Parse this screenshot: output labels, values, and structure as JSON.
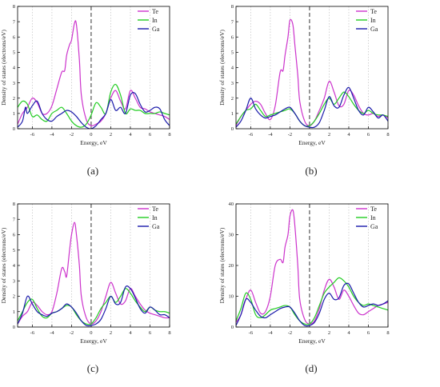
{
  "colors": {
    "Te": "#cc33cc",
    "In": "#22cc22",
    "Ga": "#1a1aaa",
    "zero_line": "#333333",
    "grid": "#c8c8c8"
  },
  "chart_data": [
    {
      "type": "line",
      "panel_label": "(a)",
      "xlabel": "Energy, eV",
      "ylabel": "Density of states (electrons/eV)",
      "xlim": [
        -7.5,
        8
      ],
      "ylim": [
        0,
        8
      ],
      "xticks": [
        -6,
        -4,
        -2,
        0,
        2,
        4,
        6,
        8
      ],
      "yticks": [
        0,
        1,
        2,
        3,
        4,
        5,
        6,
        7,
        8
      ],
      "grid": "vertical",
      "legend": "top-right",
      "zero_line": 0,
      "series": [
        {
          "name": "Te",
          "x": [
            -7.5,
            -7,
            -6.5,
            -6,
            -5.5,
            -5,
            -4.5,
            -4,
            -3.5,
            -3,
            -2.7,
            -2.5,
            -2.2,
            -2,
            -1.7,
            -1.5,
            -1.2,
            -1,
            -0.5,
            0,
            0.5,
            1,
            1.5,
            2,
            2.5,
            3,
            3.5,
            4,
            4.5,
            5,
            5.5,
            6,
            6.5,
            7,
            7.5,
            8
          ],
          "y": [
            0.3,
            1.0,
            1.4,
            2.0,
            1.7,
            1.0,
            1.0,
            1.5,
            2.6,
            3.7,
            3.8,
            4.8,
            5.5,
            5.8,
            6.9,
            6.8,
            4.5,
            2.2,
            0.6,
            0.2,
            0.3,
            0.5,
            1.0,
            2.0,
            2.5,
            1.8,
            1.3,
            2.5,
            2.0,
            1.4,
            1.3,
            1.1,
            1.0,
            0.9,
            0.8,
            0.6
          ]
        },
        {
          "name": "In",
          "x": [
            -7.5,
            -7,
            -6.5,
            -6,
            -5.5,
            -5,
            -4.5,
            -4,
            -3.5,
            -3,
            -2.5,
            -2,
            -1.5,
            -1,
            -0.5,
            0,
            0.5,
            1,
            1.5,
            2,
            2.5,
            3,
            3.5,
            4,
            4.5,
            5,
            5.5,
            6,
            6.5,
            7,
            7.5,
            8
          ],
          "y": [
            1.4,
            1.8,
            1.6,
            0.8,
            0.9,
            0.6,
            0.5,
            1.0,
            1.2,
            1.4,
            1.0,
            0.5,
            0.2,
            0.1,
            0.3,
            0.9,
            1.7,
            1.4,
            1.0,
            2.4,
            2.9,
            2.2,
            1.0,
            1.3,
            1.2,
            1.2,
            1.0,
            1.0,
            1.0,
            1.1,
            1.0,
            0.9
          ]
        },
        {
          "name": "Ga",
          "x": [
            -7.5,
            -7,
            -6.7,
            -6.5,
            -6,
            -5.5,
            -5,
            -4.5,
            -4,
            -3.5,
            -3,
            -2.5,
            -2,
            -1.5,
            -1,
            -0.5,
            0,
            0.5,
            1,
            1.5,
            2,
            2.5,
            3,
            3.5,
            4,
            4.5,
            5,
            5.5,
            6,
            6.5,
            7,
            7.5,
            8
          ],
          "y": [
            0.1,
            0.5,
            1.4,
            1.0,
            1.5,
            1.8,
            1.0,
            0.6,
            0.5,
            0.8,
            1.0,
            1.2,
            1.1,
            0.8,
            0.4,
            0.1,
            0.0,
            0.2,
            0.6,
            1.0,
            1.9,
            1.2,
            1.4,
            1.0,
            2.2,
            2.3,
            1.6,
            1.1,
            1.2,
            1.4,
            1.3,
            0.6,
            0.2
          ]
        }
      ]
    },
    {
      "type": "line",
      "panel_label": "(b)",
      "xlabel": "Energy, eV",
      "ylabel": "Density of states (electrons/eV)",
      "xlim": [
        -7.5,
        8
      ],
      "ylim": [
        0,
        8
      ],
      "xticks": [
        -6,
        -4,
        -2,
        0,
        2,
        4,
        6,
        8
      ],
      "yticks": [
        0,
        1,
        2,
        3,
        4,
        5,
        6,
        7,
        8
      ],
      "grid": "vertical",
      "legend": "top-right",
      "zero_line": 0,
      "series": [
        {
          "name": "Te",
          "x": [
            -7.5,
            -7,
            -6.5,
            -6,
            -5.5,
            -5,
            -4.5,
            -4,
            -3.5,
            -3,
            -2.7,
            -2.5,
            -2.2,
            -2,
            -1.7,
            -1.5,
            -1.2,
            -1,
            -0.5,
            0,
            0.5,
            1,
            1.5,
            2,
            2.5,
            3,
            3.5,
            4,
            4.5,
            5,
            5.5,
            6,
            6.5,
            7,
            7.5,
            8
          ],
          "y": [
            0.2,
            0.8,
            1.2,
            1.6,
            1.8,
            1.6,
            1.0,
            0.6,
            1.5,
            3.7,
            3.8,
            4.8,
            6.0,
            7.1,
            6.8,
            5.5,
            3.5,
            1.8,
            0.5,
            0.2,
            0.5,
            1.2,
            2.0,
            3.1,
            2.4,
            1.5,
            1.6,
            2.5,
            2.2,
            1.5,
            1.0,
            0.9,
            1.0,
            0.8,
            0.9,
            0.7
          ]
        },
        {
          "name": "In",
          "x": [
            -7.5,
            -7,
            -6.5,
            -6,
            -5.5,
            -5,
            -4.5,
            -4,
            -3.5,
            -3,
            -2.5,
            -2,
            -1.5,
            -1,
            -0.5,
            0,
            0.5,
            1,
            1.5,
            2,
            2.5,
            3,
            3.5,
            4,
            4.5,
            5,
            5.5,
            6,
            6.5,
            7,
            7.5,
            8
          ],
          "y": [
            0.3,
            0.8,
            1.2,
            1.3,
            1.6,
            1.2,
            0.8,
            0.9,
            1.0,
            1.1,
            1.2,
            1.3,
            1.0,
            0.5,
            0.2,
            0.2,
            0.5,
            1.0,
            1.6,
            2.0,
            1.6,
            2.0,
            2.4,
            2.1,
            1.6,
            1.2,
            1.0,
            1.2,
            1.0,
            0.9,
            0.9,
            0.8
          ]
        },
        {
          "name": "Ga",
          "x": [
            -7.5,
            -7,
            -6.5,
            -6,
            -5.5,
            -5,
            -4.5,
            -4,
            -3.5,
            -3,
            -2.5,
            -2,
            -1.5,
            -1,
            -0.5,
            0,
            0.5,
            1,
            1.5,
            2,
            2.5,
            3,
            3.5,
            4,
            4.5,
            5,
            5.5,
            6,
            6.5,
            7,
            7.5,
            8
          ],
          "y": [
            0.1,
            0.5,
            1.2,
            2.0,
            1.3,
            0.9,
            0.7,
            0.8,
            0.9,
            1.1,
            1.3,
            1.4,
            1.0,
            0.5,
            0.2,
            0.1,
            0.1,
            0.4,
            1.2,
            2.1,
            1.5,
            1.4,
            2.2,
            2.7,
            2.0,
            1.2,
            0.9,
            1.4,
            1.1,
            0.7,
            0.9,
            0.5
          ]
        }
      ]
    },
    {
      "type": "line",
      "panel_label": "(c)",
      "xlabel": "Energy, eV",
      "ylabel": "Density of states (electrons/eV)",
      "xlim": [
        -7.5,
        8
      ],
      "ylim": [
        0,
        8
      ],
      "xticks": [
        -6,
        -4,
        -2,
        0,
        2,
        4,
        6,
        8
      ],
      "yticks": [
        0,
        1,
        2,
        3,
        4,
        5,
        6,
        7,
        8
      ],
      "grid": "vertical",
      "legend": "top-right",
      "zero_line": 0,
      "series": [
        {
          "name": "Te",
          "x": [
            -7.5,
            -7,
            -6.5,
            -6,
            -5.5,
            -5,
            -4.5,
            -4,
            -3.5,
            -3,
            -2.7,
            -2.5,
            -2.2,
            -2,
            -1.7,
            -1.5,
            -1.2,
            -1,
            -0.5,
            0,
            0.5,
            1,
            1.5,
            2,
            2.5,
            3,
            3.5,
            4,
            4.5,
            5,
            5.5,
            6,
            6.5,
            7,
            7.5,
            8
          ],
          "y": [
            0.2,
            0.7,
            1.0,
            1.6,
            1.4,
            1.0,
            0.8,
            1.0,
            2.2,
            3.8,
            3.6,
            3.3,
            5.0,
            6.0,
            6.8,
            6.0,
            4.0,
            2.0,
            0.6,
            0.2,
            0.4,
            1.0,
            2.0,
            2.9,
            2.2,
            1.5,
            1.7,
            2.5,
            2.0,
            1.5,
            1.1,
            0.9,
            0.8,
            0.7,
            0.6,
            0.6
          ]
        },
        {
          "name": "In",
          "x": [
            -7.5,
            -7,
            -6.5,
            -6,
            -5.5,
            -5,
            -4.5,
            -4,
            -3.5,
            -3,
            -2.5,
            -2,
            -1.5,
            -1,
            -0.5,
            0,
            0.5,
            1,
            1.5,
            2,
            2.5,
            3,
            3.5,
            4,
            4.5,
            5,
            5.5,
            6,
            6.5,
            7,
            7.5,
            8
          ],
          "y": [
            0.4,
            1.0,
            1.6,
            1.8,
            1.2,
            0.7,
            0.6,
            0.9,
            1.0,
            1.2,
            1.4,
            1.3,
            0.8,
            0.4,
            0.2,
            0.2,
            0.6,
            1.2,
            1.6,
            2.0,
            1.6,
            2.0,
            2.5,
            2.2,
            1.7,
            1.3,
            1.0,
            1.3,
            1.1,
            1.0,
            1.0,
            0.9
          ]
        },
        {
          "name": "Ga",
          "x": [
            -7.5,
            -7,
            -6.5,
            -6,
            -5.5,
            -5,
            -4.5,
            -4,
            -3.5,
            -3,
            -2.5,
            -2,
            -1.5,
            -1,
            -0.5,
            0,
            0.5,
            1,
            1.5,
            2,
            2.5,
            3,
            3.5,
            4,
            4.5,
            5,
            5.5,
            6,
            6.5,
            7,
            7.5,
            8
          ],
          "y": [
            0.2,
            0.9,
            2.0,
            1.5,
            1.0,
            0.8,
            0.7,
            0.9,
            1.0,
            1.2,
            1.5,
            1.3,
            0.9,
            0.4,
            0.1,
            0.1,
            0.2,
            0.5,
            1.2,
            2.0,
            1.5,
            1.6,
            2.6,
            2.5,
            1.9,
            1.2,
            0.9,
            1.3,
            1.1,
            0.8,
            0.8,
            0.6
          ]
        }
      ]
    },
    {
      "type": "line",
      "panel_label": "(d)",
      "xlabel": "Energy, eV",
      "ylabel": "Density of states (electrons/eV)",
      "xlim": [
        -7.5,
        8
      ],
      "ylim": [
        0,
        40
      ],
      "xticks": [
        -6,
        -4,
        -2,
        0,
        2,
        4,
        6,
        8
      ],
      "yticks": [
        0,
        10,
        20,
        30,
        40
      ],
      "grid": "vertical",
      "legend": "top-right",
      "zero_line": 0,
      "series": [
        {
          "name": "Te",
          "x": [
            -7.5,
            -7,
            -6.5,
            -6,
            -5.5,
            -5,
            -4.5,
            -4,
            -3.5,
            -3,
            -2.7,
            -2.5,
            -2.2,
            -2,
            -1.7,
            -1.5,
            -1.2,
            -1,
            -0.5,
            0,
            0.5,
            1,
            1.5,
            2,
            2.5,
            3,
            3.5,
            4,
            4.5,
            5,
            5.5,
            6,
            6.5,
            7,
            7.5,
            8
          ],
          "y": [
            1.5,
            4.0,
            9.0,
            12.0,
            8.0,
            4.5,
            5.0,
            10.0,
            20.0,
            22.0,
            21.0,
            26.0,
            30.0,
            36.0,
            38.0,
            33.0,
            20.0,
            9.0,
            2.5,
            1.0,
            2.0,
            6.0,
            12.0,
            15.5,
            13.0,
            9.0,
            12.0,
            10.0,
            7.0,
            4.5,
            4.0,
            5.0,
            6.0,
            7.0,
            7.5,
            8.0
          ]
        },
        {
          "name": "In",
          "x": [
            -7.5,
            -7,
            -6.5,
            -6,
            -5.5,
            -5,
            -4.5,
            -4,
            -3.5,
            -3,
            -2.5,
            -2,
            -1.5,
            -1,
            -0.5,
            0,
            0.5,
            1,
            1.5,
            2,
            2.5,
            3,
            3.5,
            4,
            4.5,
            5,
            5.5,
            6,
            6.5,
            7,
            7.5,
            8
          ],
          "y": [
            2.0,
            6.0,
            11.0,
            9.0,
            4.0,
            3.0,
            4.0,
            5.5,
            6.0,
            6.5,
            7.0,
            6.5,
            4.0,
            2.0,
            1.0,
            1.0,
            3.0,
            7.0,
            11.0,
            13.0,
            14.5,
            16.0,
            15.0,
            13.0,
            10.0,
            8.0,
            7.0,
            7.5,
            7.0,
            6.5,
            6.0,
            5.5
          ]
        },
        {
          "name": "Ga",
          "x": [
            -7.5,
            -7,
            -6.5,
            -6,
            -5.5,
            -5,
            -4.5,
            -4,
            -3.5,
            -3,
            -2.5,
            -2,
            -1.5,
            -1,
            -0.5,
            0,
            0.5,
            1,
            1.5,
            2,
            2.5,
            3,
            3.5,
            4,
            4.5,
            5,
            5.5,
            6,
            6.5,
            7,
            7.5,
            8
          ],
          "y": [
            0.5,
            4.0,
            9.0,
            8.0,
            5.5,
            3.5,
            3.0,
            4.0,
            5.0,
            6.0,
            6.5,
            6.5,
            4.5,
            2.0,
            0.5,
            0.5,
            1.5,
            4.5,
            9.0,
            11.0,
            9.0,
            9.5,
            13.5,
            14.0,
            11.0,
            8.0,
            6.5,
            7.0,
            7.5,
            7.0,
            7.5,
            8.5
          ]
        }
      ]
    }
  ]
}
